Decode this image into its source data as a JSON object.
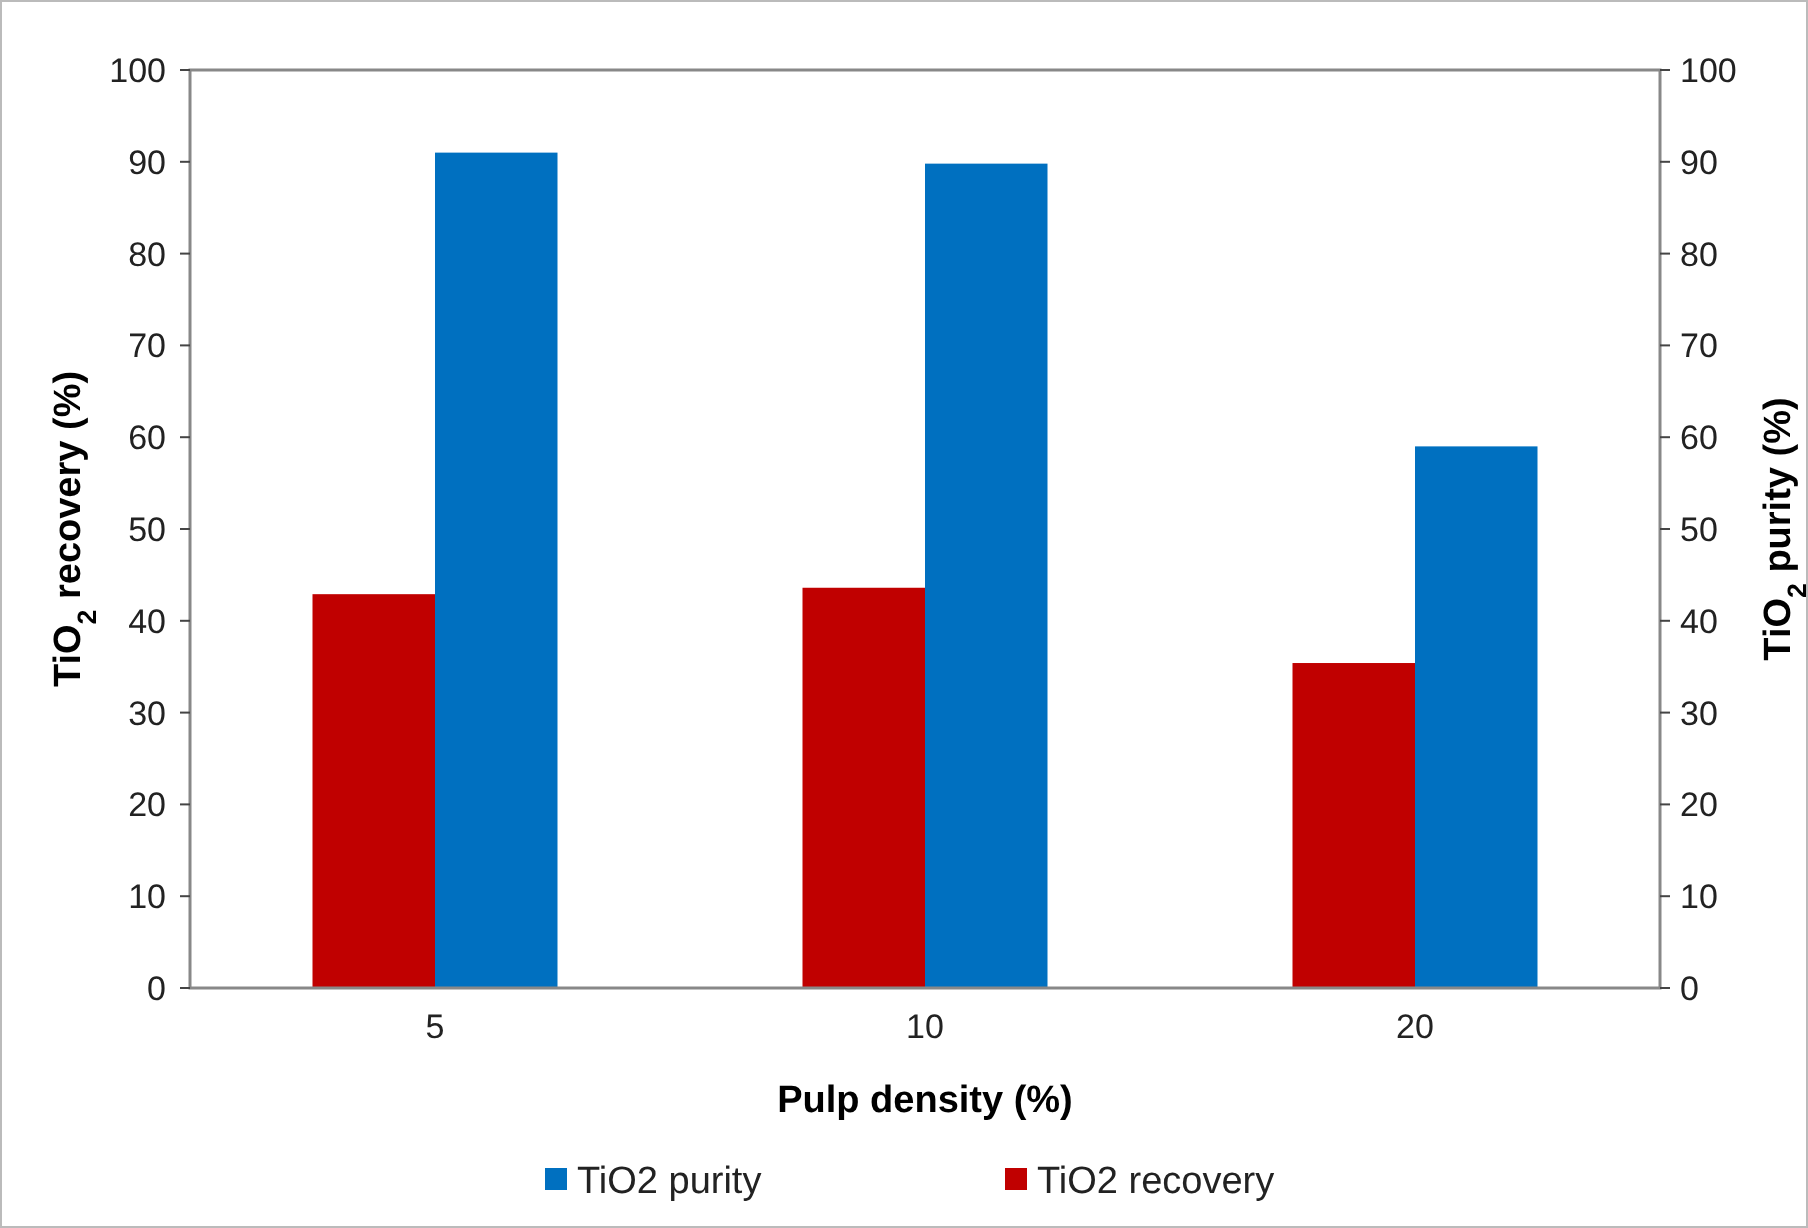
{
  "chart_data": {
    "type": "bar",
    "xlabel": "Pulp density (%)",
    "ylabel": "TiO$_{2}$ recovery (%)",
    "y2label": "TiO$_{2}$ purity (%)",
    "categories": [
      "5",
      "10",
      "20"
    ],
    "series": [
      {
        "name": "TiO2 purity",
        "color": "#0070c0",
        "axis": "y2",
        "values": [
          91,
          89.8,
          59
        ]
      },
      {
        "name": "TiO2 recovery",
        "color": "#c00000",
        "axis": "y",
        "values": [
          42.9,
          43.6,
          35.4
        ]
      }
    ],
    "ylim": [
      0,
      100
    ],
    "yticks": [
      0,
      10,
      20,
      30,
      40,
      50,
      60,
      70,
      80,
      90,
      100
    ],
    "y2lim": [
      0,
      100
    ],
    "y2ticks": [
      0,
      10,
      20,
      30,
      40,
      50,
      60,
      70,
      80,
      90,
      100
    ],
    "grid": false,
    "legend": "bottom"
  }
}
